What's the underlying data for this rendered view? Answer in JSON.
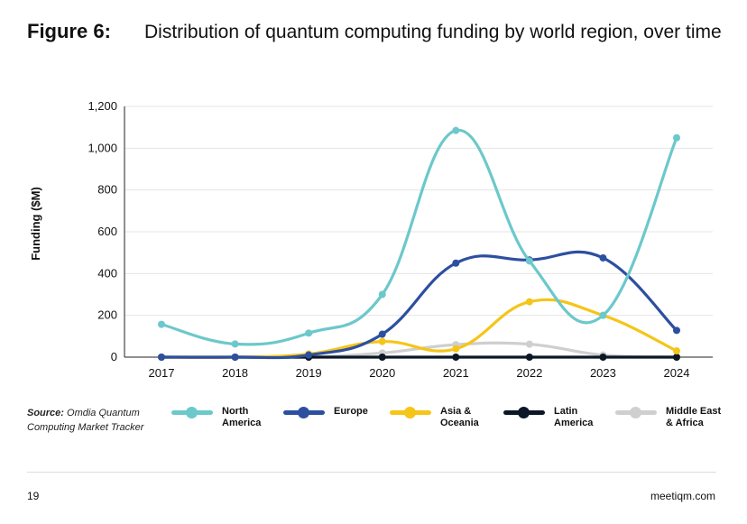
{
  "figure": {
    "label": "Figure 6:",
    "title": "Distribution of quantum computing funding by world region, over time"
  },
  "chart_data": {
    "type": "line",
    "ylabel": "Funding ($M)",
    "xlabel": "",
    "ylim": [
      0,
      1200
    ],
    "yticks": [
      0,
      200,
      400,
      600,
      800,
      1000,
      1200
    ],
    "ytick_labels": [
      "0",
      "200",
      "400",
      "600",
      "800",
      "1,000",
      "1,200"
    ],
    "categories": [
      "2017",
      "2018",
      "2019",
      "2020",
      "2021",
      "2022",
      "2023",
      "2024"
    ],
    "series": [
      {
        "name": "North America",
        "color": "#6cc8cb",
        "values": [
          157,
          63,
          115,
          300,
          1085,
          460,
          200,
          1050
        ]
      },
      {
        "name": "Europe",
        "color": "#2d4fa0",
        "values": [
          0,
          0,
          10,
          110,
          450,
          465,
          475,
          128
        ]
      },
      {
        "name": "Asia & Oceania",
        "color": "#f5c518",
        "values": [
          0,
          0,
          15,
          75,
          40,
          265,
          200,
          30
        ]
      },
      {
        "name": "Latin America",
        "color": "#0b1726",
        "values": [
          0,
          0,
          0,
          0,
          0,
          0,
          0,
          0
        ]
      },
      {
        "name": "Middle East & Africa",
        "color": "#cfcfcf",
        "values": [
          0,
          0,
          0,
          20,
          60,
          62,
          10,
          0
        ]
      }
    ]
  },
  "legend": {
    "items": [
      {
        "line1": "North",
        "line2": "America",
        "color": "#6cc8cb"
      },
      {
        "line1": "Europe",
        "line2": "",
        "color": "#2d4fa0"
      },
      {
        "line1": "Asia &",
        "line2": "Oceania",
        "color": "#f5c518"
      },
      {
        "line1": "Latin",
        "line2": "America",
        "color": "#0b1726"
      },
      {
        "line1": "Middle East",
        "line2": "& Africa",
        "color": "#cfcfcf"
      }
    ]
  },
  "source": {
    "label": "Source:",
    "text": "Omdia Quantum Computing Market Tracker"
  },
  "footer": {
    "page": "19",
    "site": "meetiqm.com"
  }
}
